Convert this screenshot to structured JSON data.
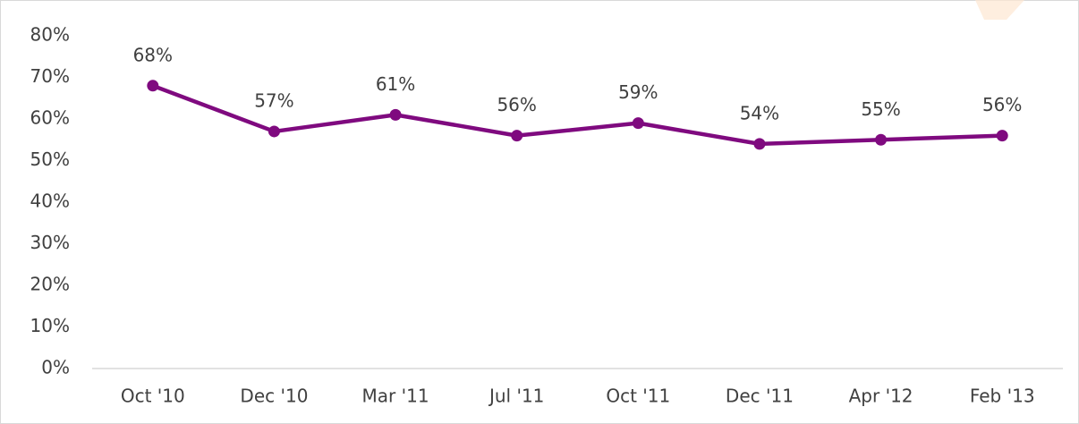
{
  "chart_data": {
    "type": "line",
    "categories": [
      "Oct '10",
      "Dec '10",
      "Mar '11",
      "Jul '11",
      "Oct '11",
      "Dec '11",
      "Apr '12",
      "Feb '13"
    ],
    "values": [
      68,
      57,
      61,
      56,
      59,
      54,
      55,
      56
    ],
    "value_labels": [
      "68%",
      "57%",
      "61%",
      "56%",
      "59%",
      "54%",
      "55%",
      "56%"
    ],
    "color": "#7f0a7f",
    "ylim": [
      0,
      80
    ],
    "yticks": [
      {
        "value": 0,
        "label": "0%"
      },
      {
        "value": 10,
        "label": "10%"
      },
      {
        "value": 20,
        "label": "20%"
      },
      {
        "value": 30,
        "label": "30%"
      },
      {
        "value": 40,
        "label": "40%"
      },
      {
        "value": 50,
        "label": "50%"
      },
      {
        "value": 60,
        "label": "60%"
      },
      {
        "value": 70,
        "label": "70%"
      },
      {
        "value": 80,
        "label": "80%"
      }
    ],
    "grid": false
  }
}
